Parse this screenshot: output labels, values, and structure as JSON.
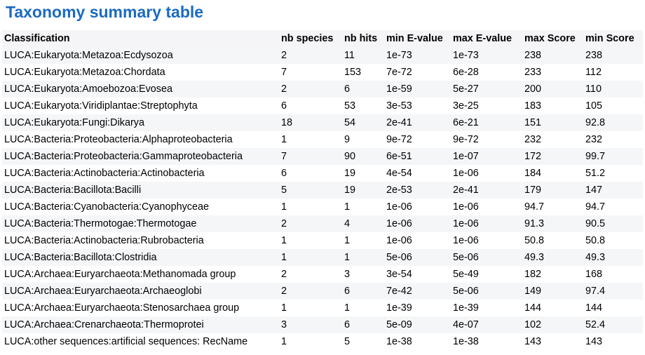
{
  "page": {
    "title": "Taxonomy summary table"
  },
  "table": {
    "headers": [
      "Classification",
      "nb species",
      "nb hits",
      "min E-value",
      "max E-value",
      "max Score",
      "min Score"
    ],
    "rows": [
      [
        "LUCA:Eukaryota:Metazoa:Ecdysozoa",
        "2",
        "11",
        "1e-73",
        "1e-73",
        "238",
        "238"
      ],
      [
        "LUCA:Eukaryota:Metazoa:Chordata",
        "7",
        "153",
        "7e-72",
        "6e-28",
        "233",
        "112"
      ],
      [
        "LUCA:Eukaryota:Amoebozoa:Evosea",
        "2",
        "6",
        "1e-59",
        "5e-27",
        "200",
        "110"
      ],
      [
        "LUCA:Eukaryota:Viridiplantae:Streptophyta",
        "6",
        "53",
        "3e-53",
        "3e-25",
        "183",
        "105"
      ],
      [
        "LUCA:Eukaryota:Fungi:Dikarya",
        "18",
        "54",
        "2e-41",
        "6e-21",
        "151",
        "92.8"
      ],
      [
        "LUCA:Bacteria:Proteobacteria:Alphaproteobacteria",
        "1",
        "9",
        "9e-72",
        "9e-72",
        "232",
        "232"
      ],
      [
        "LUCA:Bacteria:Proteobacteria:Gammaproteobacteria",
        "7",
        "90",
        "6e-51",
        "1e-07",
        "172",
        "99.7"
      ],
      [
        "LUCA:Bacteria:Actinobacteria:Actinobacteria",
        "6",
        "19",
        "4e-54",
        "1e-06",
        "184",
        "51.2"
      ],
      [
        "LUCA:Bacteria:Bacillota:Bacilli",
        "5",
        "19",
        "2e-53",
        "2e-41",
        "179",
        "147"
      ],
      [
        "LUCA:Bacteria:Cyanobacteria:Cyanophyceae",
        "1",
        "1",
        "1e-06",
        "1e-06",
        "94.7",
        "94.7"
      ],
      [
        "LUCA:Bacteria:Thermotogae:Thermotogae",
        "2",
        "4",
        "1e-06",
        "1e-06",
        "91.3",
        "90.5"
      ],
      [
        "LUCA:Bacteria:Actinobacteria:Rubrobacteria",
        "1",
        "1",
        "1e-06",
        "1e-06",
        "50.8",
        "50.8"
      ],
      [
        "LUCA:Bacteria:Bacillota:Clostridia",
        "1",
        "1",
        "5e-06",
        "5e-06",
        "49.3",
        "49.3"
      ],
      [
        "LUCA:Archaea:Euryarchaeota:Methanomada group",
        "2",
        "3",
        "3e-54",
        "5e-49",
        "182",
        "168"
      ],
      [
        "LUCA:Archaea:Euryarchaeota:Archaeoglobi",
        "2",
        "6",
        "7e-42",
        "5e-06",
        "149",
        "97.4"
      ],
      [
        "LUCA:Archaea:Euryarchaeota:Stenosarchaea group",
        "1",
        "1",
        "1e-39",
        "1e-39",
        "144",
        "144"
      ],
      [
        "LUCA:Archaea:Crenarchaeota:Thermoprotei",
        "3",
        "6",
        "5e-09",
        "4e-07",
        "102",
        "52.4"
      ],
      [
        "LUCA:other sequences:artificial sequences: RecName",
        "1",
        "5",
        "1e-38",
        "1e-38",
        "143",
        "143"
      ]
    ]
  }
}
